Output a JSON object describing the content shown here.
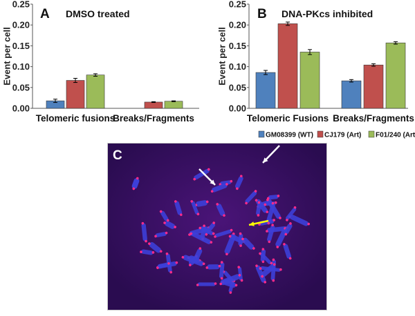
{
  "chart_data": [
    {
      "type": "bar",
      "panel_label": "A",
      "title": "DMSO treated",
      "ylabel": "Event per cell",
      "xlabel": "",
      "ylim": [
        0,
        0.25
      ],
      "yticks": [
        "0.00",
        "0.05",
        "0.10",
        "0.15",
        "0.20",
        "0.25"
      ],
      "categories": [
        "Telomeric fusions",
        "Breaks/Fragments"
      ],
      "series": [
        {
          "name": "GM08399 (WT)",
          "color": "#4f81bd",
          "values": [
            0.018,
            0.0
          ],
          "errors": [
            0.004,
            0.0
          ]
        },
        {
          "name": "CJ179 (Art)",
          "color": "#c0504d",
          "values": [
            0.067,
            0.015
          ],
          "errors": [
            0.005,
            0.001
          ]
        },
        {
          "name": "F01/240 (Art)",
          "color": "#9bbb59",
          "values": [
            0.08,
            0.017
          ],
          "errors": [
            0.003,
            0.001
          ]
        }
      ],
      "legend": "none",
      "grid": false
    },
    {
      "type": "bar",
      "panel_label": "B",
      "title": "DNA-PKcs inhibited",
      "ylabel": "Event per cell",
      "xlabel": "",
      "ylim": [
        0,
        0.25
      ],
      "yticks": [
        "0.00",
        "0.05",
        "0.10",
        "0.15",
        "0.20",
        "0.25"
      ],
      "categories": [
        "Telomeric Fusions",
        "Breaks/Fragments"
      ],
      "series": [
        {
          "name": "GM08399 (WT)",
          "color": "#4f81bd",
          "values": [
            0.086,
            0.066
          ],
          "errors": [
            0.005,
            0.003
          ]
        },
        {
          "name": "CJ179 (Art)",
          "color": "#c0504d",
          "values": [
            0.203,
            0.104
          ],
          "errors": [
            0.004,
            0.003
          ]
        },
        {
          "name": "F01/240 (Art)",
          "color": "#9bbb59",
          "values": [
            0.135,
            0.157
          ],
          "errors": [
            0.006,
            0.003
          ]
        }
      ],
      "legend": "bottom",
      "grid": false
    }
  ],
  "micrograph": {
    "panel_label": "C",
    "background_color": "#2a0c50",
    "chromosome_color": "#3d3fd8",
    "telomere_color": "#ff2a8a",
    "arrows": [
      {
        "color": "#ffffff",
        "target": "chromosome fusion"
      },
      {
        "color": "#ffffff",
        "target": "chromosome fusion"
      },
      {
        "color": "#ffff00",
        "target": "chromosome fusion"
      }
    ]
  }
}
